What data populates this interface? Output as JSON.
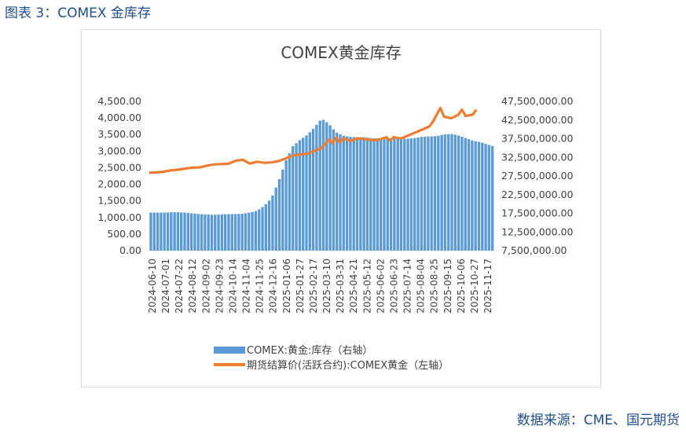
{
  "caption": "图表 3：COMEX 金库存",
  "source": "数据来源：CME、国元期货",
  "chart_data": {
    "type": "bar+line",
    "title": "COMEX黄金库存",
    "x_tick_labels": [
      "2024-06-10",
      "2024-07-01",
      "2024-07-22",
      "2024-08-12",
      "2024-09-02",
      "2024-09-23",
      "2024-10-14",
      "2024-11-04",
      "2024-11-25",
      "2024-12-16",
      "2025-01-06",
      "2025-01-27",
      "2025-02-17",
      "2025-03-10",
      "2025-03-31",
      "2025-04-21",
      "2025-05-12",
      "2025-06-02",
      "2025-06-23",
      "2025-07-14",
      "2025-08-04",
      "2025-08-25",
      "2025-09-15",
      "2025-10-06",
      "2025-10-27",
      "2025-11-17"
    ],
    "left_axis": {
      "ylim": [
        0,
        4500
      ],
      "ticks": [
        "0.00",
        "500.00",
        "1,000.00",
        "1,500.00",
        "2,000.00",
        "2,500.00",
        "3,000.00",
        "3,500.00",
        "4,000.00",
        "4,500.00"
      ]
    },
    "right_axis": {
      "ylim": [
        7500000,
        47500000
      ],
      "ticks": [
        "7,500,000.00",
        "12,500,000.00",
        "17,500,000.00",
        "22,500,000.00",
        "27,500,000.00",
        "32,500,000.00",
        "37,500,000.00",
        "42,500,000.00",
        "47,500,000.00"
      ]
    },
    "series": [
      {
        "name": "COMEX:黄金:库存（右轴）",
        "kind": "bar",
        "axis": "right",
        "color": "#5b9bd5",
        "points": [
          [
            0,
            17700000
          ],
          [
            2,
            17700000
          ],
          [
            4,
            17700000
          ],
          [
            6,
            17800000
          ],
          [
            8,
            17800000
          ],
          [
            10,
            17700000
          ],
          [
            12,
            17500000
          ],
          [
            14,
            17300000
          ],
          [
            16,
            17200000
          ],
          [
            18,
            17100000
          ],
          [
            20,
            17200000
          ],
          [
            22,
            17300000
          ],
          [
            24,
            17300000
          ],
          [
            26,
            17400000
          ],
          [
            28,
            17700000
          ],
          [
            30,
            18200000
          ],
          [
            32,
            19500000
          ],
          [
            34,
            21500000
          ],
          [
            36,
            26000000
          ],
          [
            38,
            31500000
          ],
          [
            40,
            35500000
          ],
          [
            42,
            37200000
          ],
          [
            44,
            38500000
          ],
          [
            46,
            40500000
          ],
          [
            48,
            42900000
          ],
          [
            50,
            41500000
          ],
          [
            52,
            39200000
          ],
          [
            54,
            38300000
          ],
          [
            56,
            38000000
          ],
          [
            58,
            37900000
          ],
          [
            60,
            37900000
          ],
          [
            62,
            37600000
          ],
          [
            64,
            37600000
          ],
          [
            66,
            37500000
          ],
          [
            68,
            37500000
          ],
          [
            70,
            37500000
          ],
          [
            72,
            37500000
          ],
          [
            74,
            37700000
          ],
          [
            76,
            38000000
          ],
          [
            78,
            38100000
          ],
          [
            80,
            38200000
          ],
          [
            82,
            38600000
          ],
          [
            84,
            38800000
          ],
          [
            86,
            38400000
          ],
          [
            88,
            37700000
          ],
          [
            90,
            37000000
          ],
          [
            92,
            36600000
          ],
          [
            94,
            36000000
          ],
          [
            96,
            35400000
          ]
        ],
        "bar_count": 102,
        "x_range": [
          0,
          96
        ]
      },
      {
        "name": "期货结算价(活跃合约):COMEX黄金（左轴）",
        "kind": "line",
        "axis": "left",
        "color": "#ed7d31",
        "points": [
          [
            0,
            2355
          ],
          [
            2,
            2360
          ],
          [
            4,
            2380
          ],
          [
            6,
            2420
          ],
          [
            8,
            2440
          ],
          [
            10,
            2475
          ],
          [
            12,
            2500
          ],
          [
            14,
            2510
          ],
          [
            16,
            2560
          ],
          [
            18,
            2600
          ],
          [
            20,
            2610
          ],
          [
            22,
            2620
          ],
          [
            24,
            2710
          ],
          [
            26,
            2740
          ],
          [
            28,
            2625
          ],
          [
            30,
            2680
          ],
          [
            32,
            2650
          ],
          [
            34,
            2660
          ],
          [
            36,
            2700
          ],
          [
            38,
            2780
          ],
          [
            40,
            2870
          ],
          [
            42,
            2900
          ],
          [
            44,
            2920
          ],
          [
            46,
            3010
          ],
          [
            48,
            3100
          ],
          [
            50,
            3350
          ],
          [
            51,
            3240
          ],
          [
            52,
            3410
          ],
          [
            53,
            3270
          ],
          [
            54,
            3380
          ],
          [
            56,
            3310
          ],
          [
            58,
            3390
          ],
          [
            60,
            3360
          ],
          [
            62,
            3330
          ],
          [
            64,
            3350
          ],
          [
            66,
            3420
          ],
          [
            67,
            3320
          ],
          [
            68,
            3420
          ],
          [
            70,
            3380
          ],
          [
            72,
            3470
          ],
          [
            74,
            3560
          ],
          [
            76,
            3650
          ],
          [
            78,
            3750
          ],
          [
            79,
            3900
          ],
          [
            80,
            4100
          ],
          [
            81,
            4300
          ],
          [
            82,
            4040
          ],
          [
            84,
            3990
          ],
          [
            86,
            4100
          ],
          [
            87,
            4250
          ],
          [
            88,
            4060
          ],
          [
            90,
            4100
          ],
          [
            91,
            4250
          ]
        ]
      }
    ],
    "legend_position": "bottom"
  }
}
